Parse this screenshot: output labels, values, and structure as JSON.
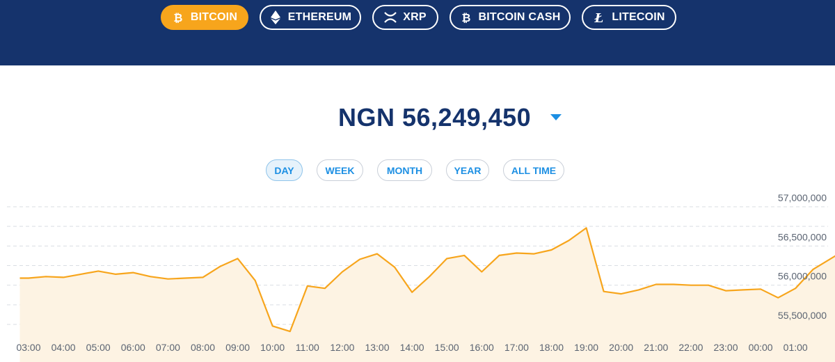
{
  "coins": [
    {
      "label": "BITCOIN",
      "icon": "bitcoin-icon",
      "active": true
    },
    {
      "label": "ETHEREUM",
      "icon": "ethereum-icon",
      "active": false
    },
    {
      "label": "XRP",
      "icon": "xrp-icon",
      "active": false
    },
    {
      "label": "BITCOIN CASH",
      "icon": "bitcoin-cash-icon",
      "active": false
    },
    {
      "label": "LITECOIN",
      "icon": "litecoin-icon",
      "active": false
    }
  ],
  "price": {
    "currency": "NGN",
    "value": "56,249,450"
  },
  "ranges": [
    {
      "label": "DAY",
      "active": true
    },
    {
      "label": "WEEK",
      "active": false
    },
    {
      "label": "MONTH",
      "active": false
    },
    {
      "label": "YEAR",
      "active": false
    },
    {
      "label": "ALL TIME",
      "active": false
    }
  ],
  "colors": {
    "header": "#15336c",
    "accent": "#f7a51c",
    "link": "#1c8fe3",
    "area_fill": "#fdf3e3"
  },
  "chart_data": {
    "type": "area",
    "ylim": [
      55250000,
      57000000
    ],
    "y_ticks": [
      55500000,
      56000000,
      56500000,
      57000000
    ],
    "y_tick_labels": [
      "55,500,000",
      "56,000,000",
      "56,500,000",
      "57,000,000"
    ],
    "x_tick_labels": [
      "03:00",
      "04:00",
      "05:00",
      "06:00",
      "07:00",
      "08:00",
      "09:00",
      "10:00",
      "11:00",
      "12:00",
      "13:00",
      "14:00",
      "15:00",
      "16:00",
      "17:00",
      "18:00",
      "19:00",
      "20:00",
      "21:00",
      "22:00",
      "23:00",
      "00:00",
      "01:00"
    ],
    "x": [
      2.75,
      3.0,
      3.5,
      4.0,
      4.5,
      5.0,
      5.5,
      6.0,
      6.5,
      7.0,
      7.5,
      8.0,
      8.5,
      9.0,
      9.5,
      10.0,
      10.5,
      11.0,
      11.5,
      12.0,
      12.5,
      13.0,
      13.5,
      14.0,
      14.5,
      15.0,
      15.5,
      16.0,
      16.5,
      17.0,
      17.5,
      18.0,
      18.5,
      19.0,
      19.5,
      20.0,
      20.5,
      21.0,
      21.5,
      22.0,
      22.5,
      23.0,
      23.5,
      24.0,
      24.5,
      25.0,
      25.5,
      26.5
    ],
    "values": [
      56090000,
      56090000,
      56110000,
      56100000,
      56140000,
      56180000,
      56140000,
      56160000,
      56110000,
      56080000,
      56090000,
      56100000,
      56240000,
      56340000,
      56060000,
      55480000,
      55410000,
      55990000,
      55960000,
      56170000,
      56330000,
      56400000,
      56230000,
      55910000,
      56110000,
      56340000,
      56380000,
      56170000,
      56380000,
      56410000,
      56400000,
      56450000,
      56570000,
      56730000,
      55920000,
      55890000,
      55940000,
      56010000,
      56010000,
      56000000,
      56000000,
      55930000,
      55940000,
      55950000,
      55840000,
      55960000,
      56200000,
      56470000
    ]
  }
}
